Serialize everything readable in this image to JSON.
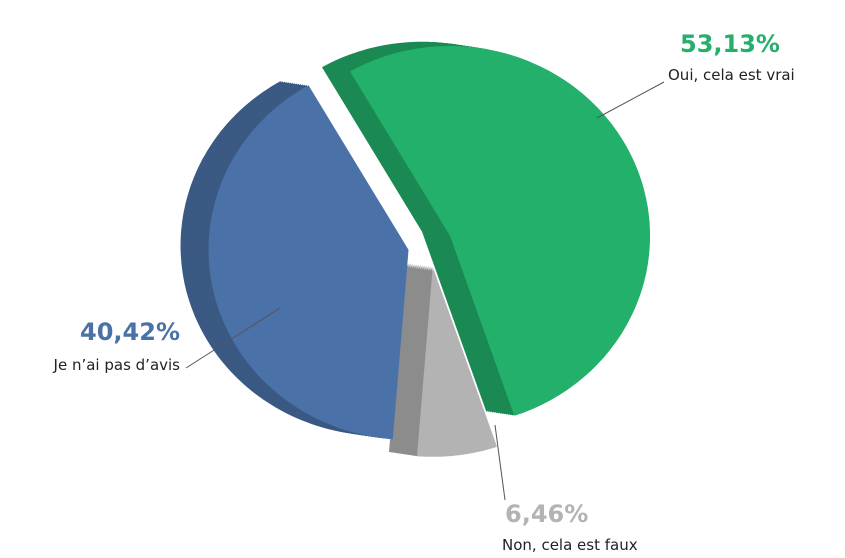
{
  "chart_data": {
    "type": "pie",
    "categories": [
      "Oui, cela est vrai",
      "Non, cela est faux",
      "Je n’ai pas d’avis"
    ],
    "values": [
      53.13,
      6.46,
      40.42
    ],
    "value_labels": [
      "53,13%",
      "6,46%",
      "40,42%"
    ],
    "colors": [
      "#22b06a",
      "#b3b3b3",
      "#4a72a8"
    ]
  }
}
